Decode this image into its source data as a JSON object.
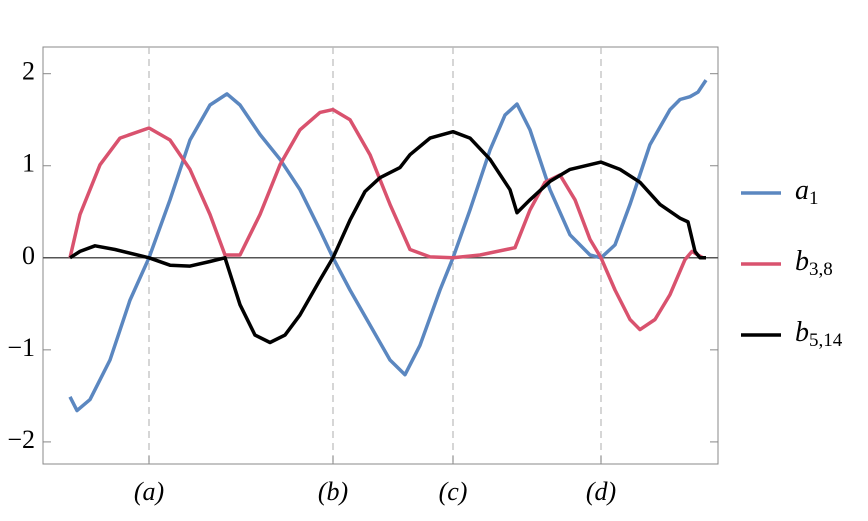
{
  "chart_data": {
    "type": "line",
    "xlim": [
      0,
      675
    ],
    "ylim": [
      -2.24,
      2.29
    ],
    "xticks": [
      {
        "value": 106,
        "label": "(a)"
      },
      {
        "value": 290,
        "label": "(b)"
      },
      {
        "value": 410,
        "label": "(c)"
      },
      {
        "value": 558,
        "label": "(d)"
      }
    ],
    "yticks": [
      {
        "value": -2,
        "label": "−2"
      },
      {
        "value": -1,
        "label": "−1"
      },
      0,
      1,
      2
    ],
    "x_grid": true,
    "x_grid_style": "dashed",
    "legend": "right",
    "series": [
      {
        "name": "a",
        "subscript": "1",
        "color": "#5b87c0",
        "x": [
          27,
          34,
          47,
          67,
          87,
          106,
          127,
          147,
          167,
          184,
          197,
          217,
          237,
          257,
          277,
          290,
          307,
          327,
          347,
          362,
          377,
          397,
          410,
          427,
          447,
          462,
          474,
          487,
          507,
          527,
          547,
          558,
          572,
          587,
          607,
          627,
          637,
          647,
          655,
          663
        ],
        "values": [
          -1.51,
          -1.66,
          -1.54,
          -1.11,
          -0.46,
          0,
          0.63,
          1.28,
          1.66,
          1.78,
          1.66,
          1.34,
          1.07,
          0.74,
          0.3,
          0,
          -0.35,
          -0.73,
          -1.11,
          -1.27,
          -0.95,
          -0.35,
          0,
          0.52,
          1.17,
          1.55,
          1.67,
          1.39,
          0.74,
          0.25,
          0.03,
          0,
          0.14,
          0.58,
          1.23,
          1.61,
          1.72,
          1.75,
          1.8,
          1.93
        ]
      },
      {
        "name": "b",
        "subscript": "3,8",
        "color": "#d9526e",
        "x": [
          27,
          37,
          57,
          77,
          106,
          127,
          147,
          167,
          182,
          197,
          217,
          237,
          257,
          277,
          290,
          307,
          327,
          347,
          367,
          387,
          410,
          437,
          472,
          487,
          502,
          517,
          532,
          547,
          558,
          572,
          587,
          597,
          612,
          627,
          642,
          649,
          655,
          660
        ],
        "values": [
          0,
          0.47,
          1.01,
          1.3,
          1.41,
          1.28,
          0.96,
          0.47,
          0.03,
          0.03,
          0.47,
          1.01,
          1.39,
          1.58,
          1.61,
          1.5,
          1.12,
          0.58,
          0.09,
          0.01,
          0,
          0.03,
          0.11,
          0.52,
          0.82,
          0.9,
          0.63,
          0.2,
          0,
          -0.35,
          -0.67,
          -0.78,
          -0.67,
          -0.4,
          -0.02,
          0.07,
          0.03,
          0
        ]
      },
      {
        "name": "b",
        "subscript": "5,14",
        "color": "#000000",
        "x": [
          27,
          37,
          52,
          72,
          106,
          127,
          147,
          167,
          182,
          197,
          212,
          227,
          242,
          257,
          277,
          290,
          307,
          322,
          337,
          357,
          367,
          387,
          410,
          427,
          447,
          467,
          474,
          487,
          507,
          527,
          558,
          577,
          597,
          617,
          637,
          645,
          652,
          657,
          663
        ],
        "values": [
          0,
          0.07,
          0.13,
          0.09,
          0,
          -0.08,
          -0.09,
          -0.04,
          0,
          -0.51,
          -0.84,
          -0.92,
          -0.84,
          -0.62,
          -0.24,
          0,
          0.41,
          0.72,
          0.87,
          0.98,
          1.12,
          1.3,
          1.37,
          1.3,
          1.07,
          0.74,
          0.49,
          0.63,
          0.83,
          0.96,
          1.04,
          0.96,
          0.82,
          0.58,
          0.43,
          0.39,
          0.07,
          0,
          0
        ]
      }
    ]
  }
}
